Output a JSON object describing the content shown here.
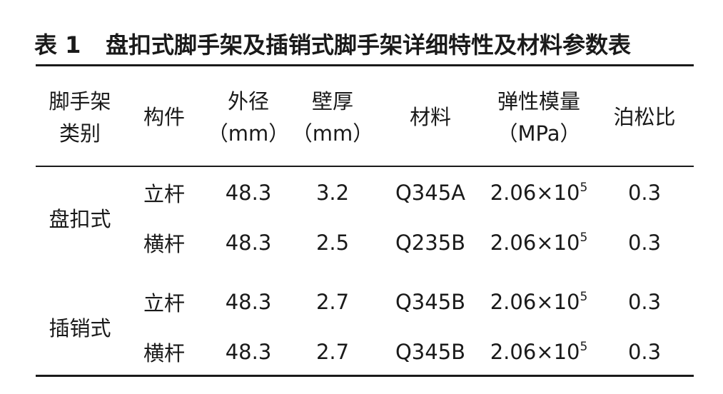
{
  "title": {
    "label": "表 1",
    "text": "盘扣式脚手架及插销式脚手架详细特性及材料参数表"
  },
  "table": {
    "header": [
      [
        "脚手架",
        "类别"
      ],
      [
        "构件"
      ],
      [
        "外径",
        "（mm）"
      ],
      [
        "壁厚",
        "（mm）"
      ],
      [
        "材料"
      ],
      [
        "弹性模量",
        "（MPa）"
      ],
      [
        "泊松比"
      ]
    ],
    "groups": [
      {
        "name": "盘扣式",
        "rows": [
          {
            "component": "立杆",
            "diameter": "48.3",
            "thickness": "3.2",
            "material": "Q345A",
            "modulus": "2.06×10",
            "exponent": "5",
            "poisson": "0.3"
          },
          {
            "component": "横杆",
            "diameter": "48.3",
            "thickness": "2.5",
            "material": "Q235B",
            "modulus": "2.06×10",
            "exponent": "5",
            "poisson": "0.3"
          }
        ]
      },
      {
        "name": "插销式",
        "rows": [
          {
            "component": "立杆",
            "diameter": "48.3",
            "thickness": "2.7",
            "material": "Q345B",
            "modulus": "2.06×10",
            "exponent": "5",
            "poisson": "0.3"
          },
          {
            "component": "横杆",
            "diameter": "48.3",
            "thickness": "2.7",
            "material": "Q345B",
            "modulus": "2.06×10",
            "exponent": "5",
            "poisson": "0.3"
          }
        ]
      }
    ]
  }
}
